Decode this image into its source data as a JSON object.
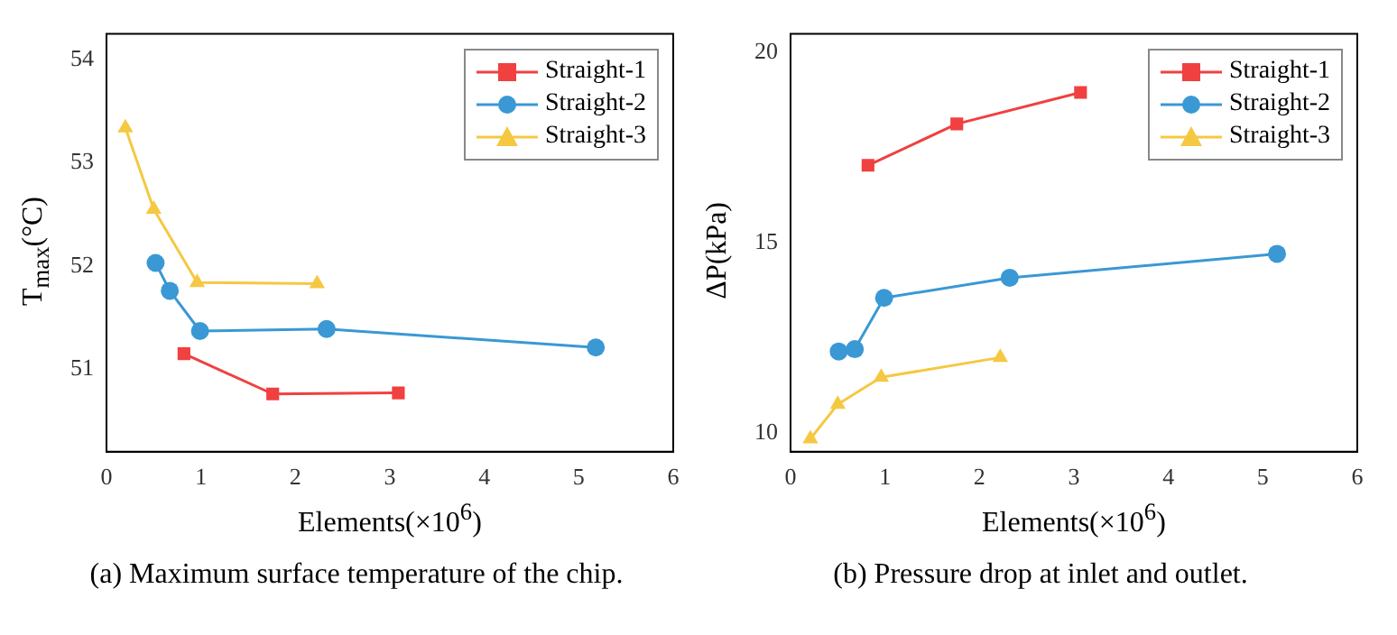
{
  "chart_data": [
    {
      "type": "line",
      "title": "(a) Maximum surface temperature of the chip.",
      "xlabel": "Elements(×10$^{6}$)",
      "ylabel": "T$_{max}$(°C)",
      "xlim": [
        0,
        6
      ],
      "xticks": [
        0,
        1,
        2,
        3,
        4,
        5,
        6
      ],
      "ylim": [
        50.2,
        54.25
      ],
      "yticks": [
        51,
        52,
        53,
        54
      ],
      "grid": false,
      "legend": "top right",
      "series": [
        {
          "name": "Straight-1",
          "color": "#f04040",
          "marker": "square",
          "x": [
            0.82,
            1.76,
            3.09
          ],
          "values": [
            51.15,
            50.76,
            50.77
          ]
        },
        {
          "name": "Straight-2",
          "color": "#3a98d4",
          "marker": "circle",
          "x": [
            0.52,
            0.67,
            0.99,
            2.33,
            5.18
          ],
          "values": [
            52.03,
            51.76,
            51.37,
            51.39,
            51.21
          ]
        },
        {
          "name": "Straight-3",
          "color": "#f5c842",
          "marker": "triangle",
          "x": [
            0.2,
            0.5,
            0.96,
            2.23
          ],
          "values": [
            53.34,
            52.55,
            51.84,
            51.83
          ]
        }
      ]
    },
    {
      "type": "line",
      "title": "(b) Pressure drop at inlet and outlet.",
      "xlabel": "Elements(×10$^{6}$)",
      "ylabel": "ΔP(kPa)",
      "xlim": [
        0,
        6
      ],
      "xticks": [
        0,
        1,
        2,
        3,
        4,
        5,
        6
      ],
      "ylim": [
        9.5,
        20.5
      ],
      "yticks": [
        10,
        15,
        20
      ],
      "grid": false,
      "legend": "top right",
      "series": [
        {
          "name": "Straight-1",
          "color": "#f04040",
          "marker": "square",
          "x": [
            0.82,
            1.76,
            3.07
          ],
          "values": [
            17.04,
            18.13,
            18.96
          ]
        },
        {
          "name": "Straight-2",
          "color": "#3a98d4",
          "marker": "circle",
          "x": [
            0.51,
            0.68,
            0.99,
            2.32,
            5.15
          ],
          "values": [
            12.14,
            12.2,
            13.55,
            14.08,
            14.71
          ]
        },
        {
          "name": "Straight-3",
          "color": "#f5c842",
          "marker": "triangle",
          "x": [
            0.21,
            0.5,
            0.96,
            2.22
          ],
          "values": [
            9.84,
            10.75,
            11.46,
            11.98
          ]
        }
      ]
    }
  ]
}
